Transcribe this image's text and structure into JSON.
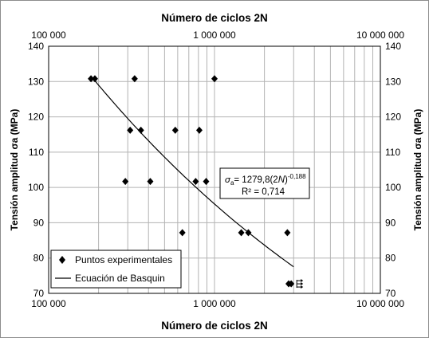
{
  "chart_data": {
    "type": "scatter",
    "title_top": "Número de ciclos 2N",
    "xlabel": "Número de ciclos 2N",
    "ylabel_left": "Tensión amplitud σa (MPa)",
    "ylabel_right": "Tensión amplitud σa (MPa)",
    "x_scale": "log",
    "xlim": [
      100000,
      10000000
    ],
    "ylim": [
      70,
      140
    ],
    "x_tick_labels": [
      "100 000",
      "1 000 000",
      "10 000 000"
    ],
    "x_tick_values": [
      100000,
      1000000,
      10000000
    ],
    "y_ticks": [
      70,
      80,
      90,
      100,
      110,
      120,
      130,
      140
    ],
    "grid": true,
    "series": [
      {
        "name": "Puntos experimentales",
        "marker": "diamond",
        "color": "#000000",
        "x": [
          180000,
          190000,
          330000,
          310000,
          360000,
          290000,
          410000,
          580000,
          640000,
          770000,
          810000,
          890000,
          1000000,
          1450000,
          1600000,
          2750000,
          2800000,
          2900000
        ],
        "y": [
          130.8,
          130.8,
          130.8,
          116.2,
          116.2,
          101.7,
          101.7,
          116.2,
          87.2,
          101.7,
          116.2,
          101.7,
          130.8,
          87.2,
          87.2,
          87.2,
          72.7,
          72.7
        ],
        "runout": [
          false,
          false,
          false,
          false,
          false,
          false,
          false,
          false,
          false,
          false,
          false,
          false,
          false,
          false,
          false,
          false,
          false,
          true
        ]
      },
      {
        "name": "Ecuación de Basquin",
        "type": "line",
        "color": "#000000",
        "coefficient": 1279.8,
        "exponent": -0.188,
        "x_range": [
          190000,
          3000000
        ]
      }
    ],
    "annotation": {
      "line1_prefix": "σ",
      "line1_sub": "a",
      "line1_mid": "= 1279,8(2",
      "line1_n": "N",
      "line1_close": ")",
      "line1_sup": "-0,188",
      "line2": "R² = 0,714"
    },
    "legend": {
      "position": "bottom-left"
    }
  }
}
